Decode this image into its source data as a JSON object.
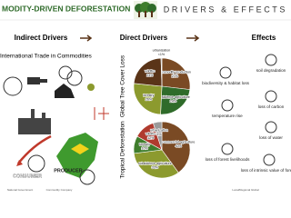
{
  "header": {
    "title": "MODITY-DRIVEN DEFORESTATION",
    "subtitle": "DRIVERS & EFFECTS"
  },
  "columns": [
    "Indirect Drivers",
    "Direct Drivers",
    "Effects"
  ],
  "indirect": {
    "trade": "International Trade in Commodities",
    "consumer": "CONSUMER",
    "producer": "PRODUCER",
    "actors": [
      "National Government",
      "Commodity Company",
      "Local/Regional Global"
    ]
  },
  "pies": [
    {
      "title": "Global Tree Cover Loss",
      "slices": [
        {
          "label": "commodity production",
          "value": 27,
          "value_label": "27%",
          "color": "#7a4a24"
        },
        {
          "label": "subsistence agriculture",
          "value": 24,
          "value_label": "24%",
          "color": "#2f6b2a"
        },
        {
          "label": "forestry",
          "value": 26,
          "value_label": "26%",
          "color": "#8c9a2e"
        },
        {
          "label": "wildfire",
          "value": 23,
          "value_label": "23%",
          "color": "#5a3418"
        },
        {
          "label": "urbanization",
          "value": 0.5,
          "value_label": "<1%",
          "color": "#9a9a9a"
        }
      ]
    },
    {
      "title": "Tropical Deforestation",
      "slices": [
        {
          "label": "commercial agriculture",
          "value": 40,
          "value_label": "40%",
          "color": "#7a4a24"
        },
        {
          "label": "subsistence agriculture",
          "value": 33,
          "value_label": "33%",
          "color": "#8c9a2e"
        },
        {
          "label": "forestry",
          "value": 10,
          "value_label": "10%",
          "color": "#3f7d2c"
        },
        {
          "label": "wildfire",
          "value": 12,
          "value_label": "12%",
          "color": "#b03a2e"
        },
        {
          "label": "urbanization",
          "value": 5,
          "value_label": "5%",
          "color": "#9a9a9a"
        }
      ]
    }
  ],
  "effects": [
    "biodiversity & habitat loss",
    "soil degradation",
    "temperature rise",
    "loss of carbon",
    "loss of water",
    "loss of forest livelihoods",
    "loss of intrinsic value of forests"
  ]
}
